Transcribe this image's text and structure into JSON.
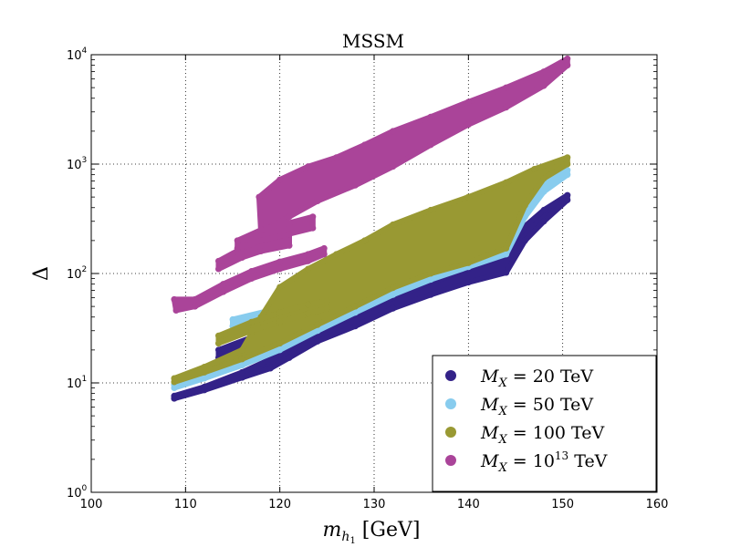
{
  "chart_data": {
    "type": "scatter",
    "title": "MSSM",
    "xlabel": "m_{h_1} [GeV]",
    "xlabel_main": "m",
    "xlabel_sub": "h",
    "xlabel_subsub": "1",
    "xlabel_unit": " [GeV]",
    "ylabel": "Δ",
    "xlim": [
      100,
      160
    ],
    "ylim": [
      1,
      10000
    ],
    "yscale": "log",
    "grid": true,
    "grid_style": "dotted",
    "legend_position": "bottom-right",
    "x_ticks": [
      "100",
      "110",
      "120",
      "130",
      "140",
      "150",
      "160"
    ],
    "y_ticks": [
      {
        "base": "10",
        "exp": "0"
      },
      {
        "base": "10",
        "exp": "1"
      },
      {
        "base": "10",
        "exp": "2"
      },
      {
        "base": "10",
        "exp": "3"
      },
      {
        "base": "10",
        "exp": "4"
      }
    ],
    "series": [
      {
        "name": "M_X = 20 TeV",
        "label_parts": {
          "sym": "M",
          "sub": "X",
          "eq": " = ",
          "val": "20",
          "sup": "",
          "unit": " TeV"
        },
        "color": "#332288",
        "bands": [
          {
            "lower": [
              [
                108.8,
                7.2
              ],
              [
                112,
                8.6
              ],
              [
                116,
                11.2
              ],
              [
                119,
                13.6
              ],
              [
                121,
                17
              ],
              [
                124,
                24
              ],
              [
                128,
                33
              ],
              [
                132,
                48
              ],
              [
                136,
                64
              ],
              [
                140,
                83
              ],
              [
                144,
                102
              ],
              [
                146,
                200
              ],
              [
                148,
                300
              ],
              [
                150.5,
                470
              ]
            ],
            "upper": [
              [
                108.8,
                7.6
              ],
              [
                112,
                9.2
              ],
              [
                116,
                12.5
              ],
              [
                120,
                18
              ],
              [
                124,
                30
              ],
              [
                128,
                42
              ],
              [
                132,
                60
              ],
              [
                136,
                82
              ],
              [
                140,
                110
              ],
              [
                144,
                150
              ],
              [
                146,
                270
              ],
              [
                148,
                380
              ],
              [
                150.5,
                520
              ]
            ]
          },
          {
            "lower": [
              [
                113.5,
                17
              ],
              [
                117,
                21
              ],
              [
                120,
                25
              ],
              [
                123,
                30
              ],
              [
                125,
                34
              ]
            ],
            "upper": [
              [
                113.5,
                20
              ],
              [
                117,
                26
              ],
              [
                120,
                32
              ],
              [
                123,
                38
              ],
              [
                125,
                40
              ]
            ]
          }
        ]
      },
      {
        "name": "M_X = 50 TeV",
        "label_parts": {
          "sym": "M",
          "sub": "X",
          "eq": " = ",
          "val": "50",
          "sup": "",
          "unit": " TeV"
        },
        "color": "#88CCEE",
        "bands": [
          {
            "lower": [
              [
                108.8,
                9
              ],
              [
                112,
                11
              ],
              [
                116,
                14.5
              ],
              [
                120,
                20
              ],
              [
                124,
                30
              ],
              [
                128,
                44
              ],
              [
                132,
                64
              ],
              [
                136,
                88
              ],
              [
                140,
                115
              ],
              [
                144,
                150
              ],
              [
                146,
                330
              ],
              [
                148,
                560
              ],
              [
                150.5,
                800
              ]
            ],
            "upper": [
              [
                108.8,
                9.6
              ],
              [
                112,
                11.8
              ],
              [
                116,
                16
              ],
              [
                120,
                24
              ],
              [
                124,
                36
              ],
              [
                128,
                54
              ],
              [
                132,
                80
              ],
              [
                136,
                108
              ],
              [
                140,
                140
              ],
              [
                144,
                200
              ],
              [
                146,
                450
              ],
              [
                148,
                680
              ],
              [
                150.5,
                880
              ]
            ]
          },
          {
            "lower": [
              [
                115,
                33
              ],
              [
                119,
                40
              ],
              [
                122,
                48
              ],
              [
                125,
                54
              ]
            ],
            "upper": [
              [
                115,
                38
              ],
              [
                119,
                46
              ],
              [
                122,
                56
              ],
              [
                125,
                62
              ]
            ]
          }
        ]
      },
      {
        "name": "M_X = 100 TeV",
        "label_parts": {
          "sym": "M",
          "sub": "X",
          "eq": " = ",
          "val": "100",
          "sup": "",
          "unit": " TeV"
        },
        "color": "#999933",
        "bands": [
          {
            "lower": [
              [
                108.8,
                10.2
              ],
              [
                112,
                12.5
              ],
              [
                116,
                16.5
              ],
              [
                120,
                23
              ],
              [
                124,
                34
              ],
              [
                128,
                50
              ],
              [
                132,
                74
              ],
              [
                136,
                100
              ],
              [
                140,
                125
              ],
              [
                144,
                170
              ],
              [
                146,
                420
              ],
              [
                148,
                740
              ],
              [
                150.5,
                1000
              ]
            ],
            "upper": [
              [
                108.8,
                11
              ],
              [
                112,
                14
              ],
              [
                116,
                20
              ],
              [
                118,
                40
              ],
              [
                120,
                75
              ],
              [
                123,
                110
              ],
              [
                126,
                150
              ],
              [
                129,
                200
              ],
              [
                132,
                280
              ],
              [
                136,
                380
              ],
              [
                140,
                500
              ],
              [
                144,
                680
              ],
              [
                147,
                900
              ],
              [
                150.5,
                1150
              ]
            ]
          },
          {
            "lower": [
              [
                113.5,
                23
              ],
              [
                117,
                30
              ],
              [
                120,
                36
              ],
              [
                123,
                43
              ],
              [
                125,
                48
              ]
            ],
            "upper": [
              [
                113.5,
                27
              ],
              [
                117,
                36
              ],
              [
                120,
                44
              ],
              [
                123,
                52
              ],
              [
                125,
                56
              ]
            ]
          }
        ]
      },
      {
        "name": "M_X = 10^{13} TeV",
        "label_parts": {
          "sym": "M",
          "sub": "X",
          "eq": " = ",
          "val": "10",
          "sup": "13",
          "unit": " TeV"
        },
        "color": "#AA4499",
        "bands": [
          {
            "lower": [
              [
                118,
                240
              ],
              [
                121,
                330
              ],
              [
                124,
                460
              ],
              [
                128,
                640
              ],
              [
                132,
                950
              ],
              [
                136,
                1500
              ],
              [
                140,
                2300
              ],
              [
                144,
                3300
              ],
              [
                148,
                5200
              ],
              [
                150.5,
                8000
              ]
            ],
            "upper": [
              [
                117.8,
                500
              ],
              [
                120,
                720
              ],
              [
                123,
                950
              ],
              [
                126,
                1150
              ],
              [
                129,
                1500
              ],
              [
                132,
                2000
              ],
              [
                136,
                2700
              ],
              [
                140,
                3700
              ],
              [
                144,
                5000
              ],
              [
                148,
                7000
              ],
              [
                150.5,
                9200
              ]
            ]
          },
          {
            "lower": [
              [
                109,
                46
              ],
              [
                111,
                50
              ],
              [
                114,
                68
              ],
              [
                117,
                90
              ],
              [
                120,
                110
              ],
              [
                123,
                130
              ],
              [
                124.7,
                150
              ]
            ],
            "upper": [
              [
                108.8,
                58
              ],
              [
                111,
                58
              ],
              [
                114,
                80
              ],
              [
                117,
                105
              ],
              [
                120,
                128
              ],
              [
                123,
                150
              ],
              [
                124.7,
                170
              ]
            ]
          },
          {
            "lower": [
              [
                113.5,
                110
              ],
              [
                116,
                140
              ],
              [
                118,
                160
              ],
              [
                121,
                180
              ]
            ],
            "upper": [
              [
                113.5,
                130
              ],
              [
                116,
                170
              ],
              [
                118,
                200
              ],
              [
                121,
                230
              ]
            ]
          },
          {
            "lower": [
              [
                115.5,
                170
              ],
              [
                118,
                200
              ],
              [
                121,
                230
              ],
              [
                123.5,
                260
              ]
            ],
            "upper": [
              [
                115.5,
                200
              ],
              [
                118,
                250
              ],
              [
                121,
                290
              ],
              [
                123.5,
                330
              ]
            ]
          }
        ]
      }
    ]
  }
}
